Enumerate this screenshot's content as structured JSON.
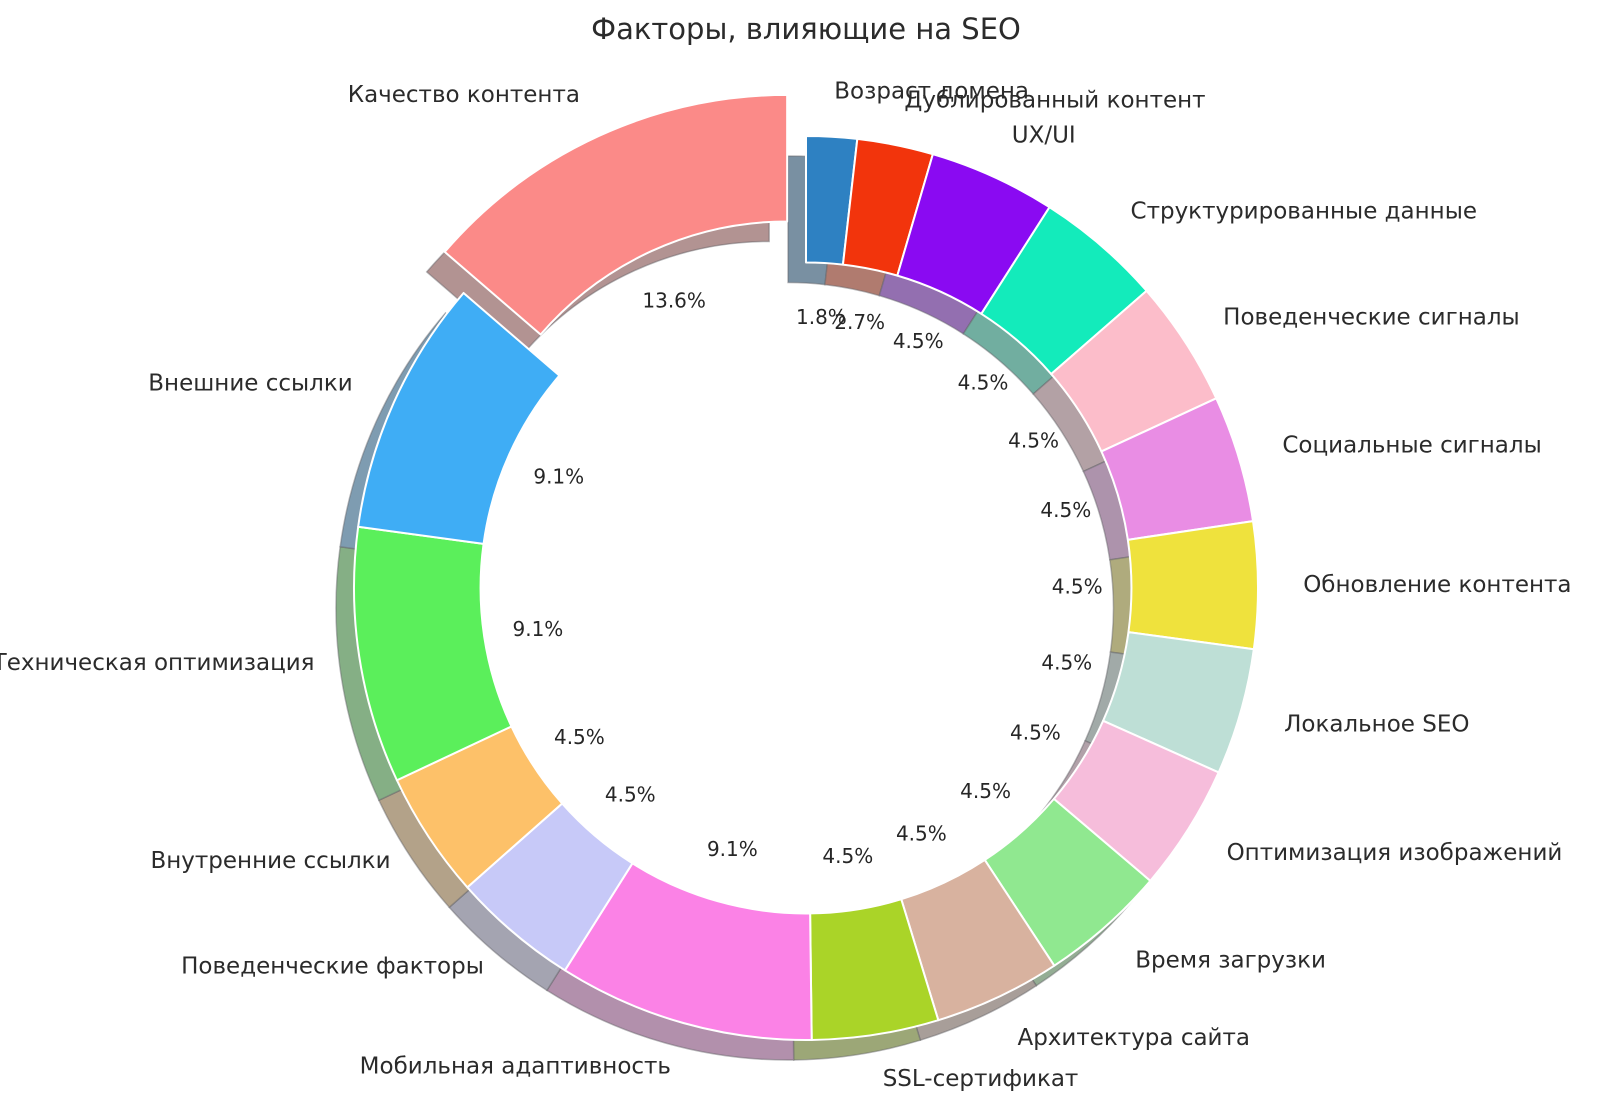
{
  "title": "Факторы, влияющие на SEO",
  "chart_data": {
    "type": "pie",
    "title": "Факторы, влияющие на SEO",
    "donut": true,
    "shadow": true,
    "start_angle_deg": 90,
    "clockwise": true,
    "inner_radius_ratio": 0.72,
    "label_distance": 1.1,
    "pct_distance": 0.6,
    "text_color": "#2b2b2b",
    "slices": [
      {
        "label": "Возраст домена",
        "value": 1.8,
        "pct_label": "1.8%",
        "color": "#2e81c2",
        "explode": 0
      },
      {
        "label": "Дублированный контент",
        "value": 2.7,
        "pct_label": "2.7%",
        "color": "#f2340c",
        "explode": 0
      },
      {
        "label": "UX/UI",
        "value": 4.5,
        "pct_label": "4.5%",
        "color": "#8a0af2",
        "explode": 0
      },
      {
        "label": "Структурированные данные",
        "value": 4.5,
        "pct_label": "4.5%",
        "color": "#13ebbb",
        "explode": 0
      },
      {
        "label": "Поведенческие сигналы",
        "value": 4.5,
        "pct_label": "4.5%",
        "color": "#fcbdca",
        "explode": 0
      },
      {
        "label": "Социальные сигналы",
        "value": 4.5,
        "pct_label": "4.5%",
        "color": "#e98de4",
        "explode": 0
      },
      {
        "label": "Обновление контента",
        "value": 4.5,
        "pct_label": "4.5%",
        "color": "#efe23d",
        "explode": 0
      },
      {
        "label": "Локальное SEO",
        "value": 4.5,
        "pct_label": "4.5%",
        "color": "#bedfd6",
        "explode": 0
      },
      {
        "label": "Оптимизация изображений",
        "value": 4.5,
        "pct_label": "4.5%",
        "color": "#f6bddb",
        "explode": 0
      },
      {
        "label": "Время загрузки",
        "value": 4.5,
        "pct_label": "4.5%",
        "color": "#90e890",
        "explode": 0
      },
      {
        "label": "Архитектура сайта",
        "value": 4.5,
        "pct_label": "4.5%",
        "color": "#d8b29f",
        "explode": 0
      },
      {
        "label": "SSL-сертификат",
        "value": 4.5,
        "pct_label": "4.5%",
        "color": "#aad428",
        "explode": 0
      },
      {
        "label": "Мобильная адаптивность",
        "value": 9.1,
        "pct_label": "9.1%",
        "color": "#fb82e6",
        "explode": 0
      },
      {
        "label": "Поведенческие факторы",
        "value": 4.5,
        "pct_label": "4.5%",
        "color": "#c7c9f8",
        "explode": 0
      },
      {
        "label": "Внутренние ссылки",
        "value": 4.5,
        "pct_label": "4.5%",
        "color": "#fdc169",
        "explode": 0
      },
      {
        "label": "Техническая оптимизация",
        "value": 9.1,
        "pct_label": "9.1%",
        "color": "#5bef5b",
        "explode": 0
      },
      {
        "label": "Внешние ссылки",
        "value": 9.1,
        "pct_label": "9.1%",
        "color": "#3fadf5",
        "explode": 0
      },
      {
        "label": "Качество контента",
        "value": 13.6,
        "pct_label": "13.6%",
        "color": "#fb8a88",
        "explode": 0.1
      }
    ]
  }
}
